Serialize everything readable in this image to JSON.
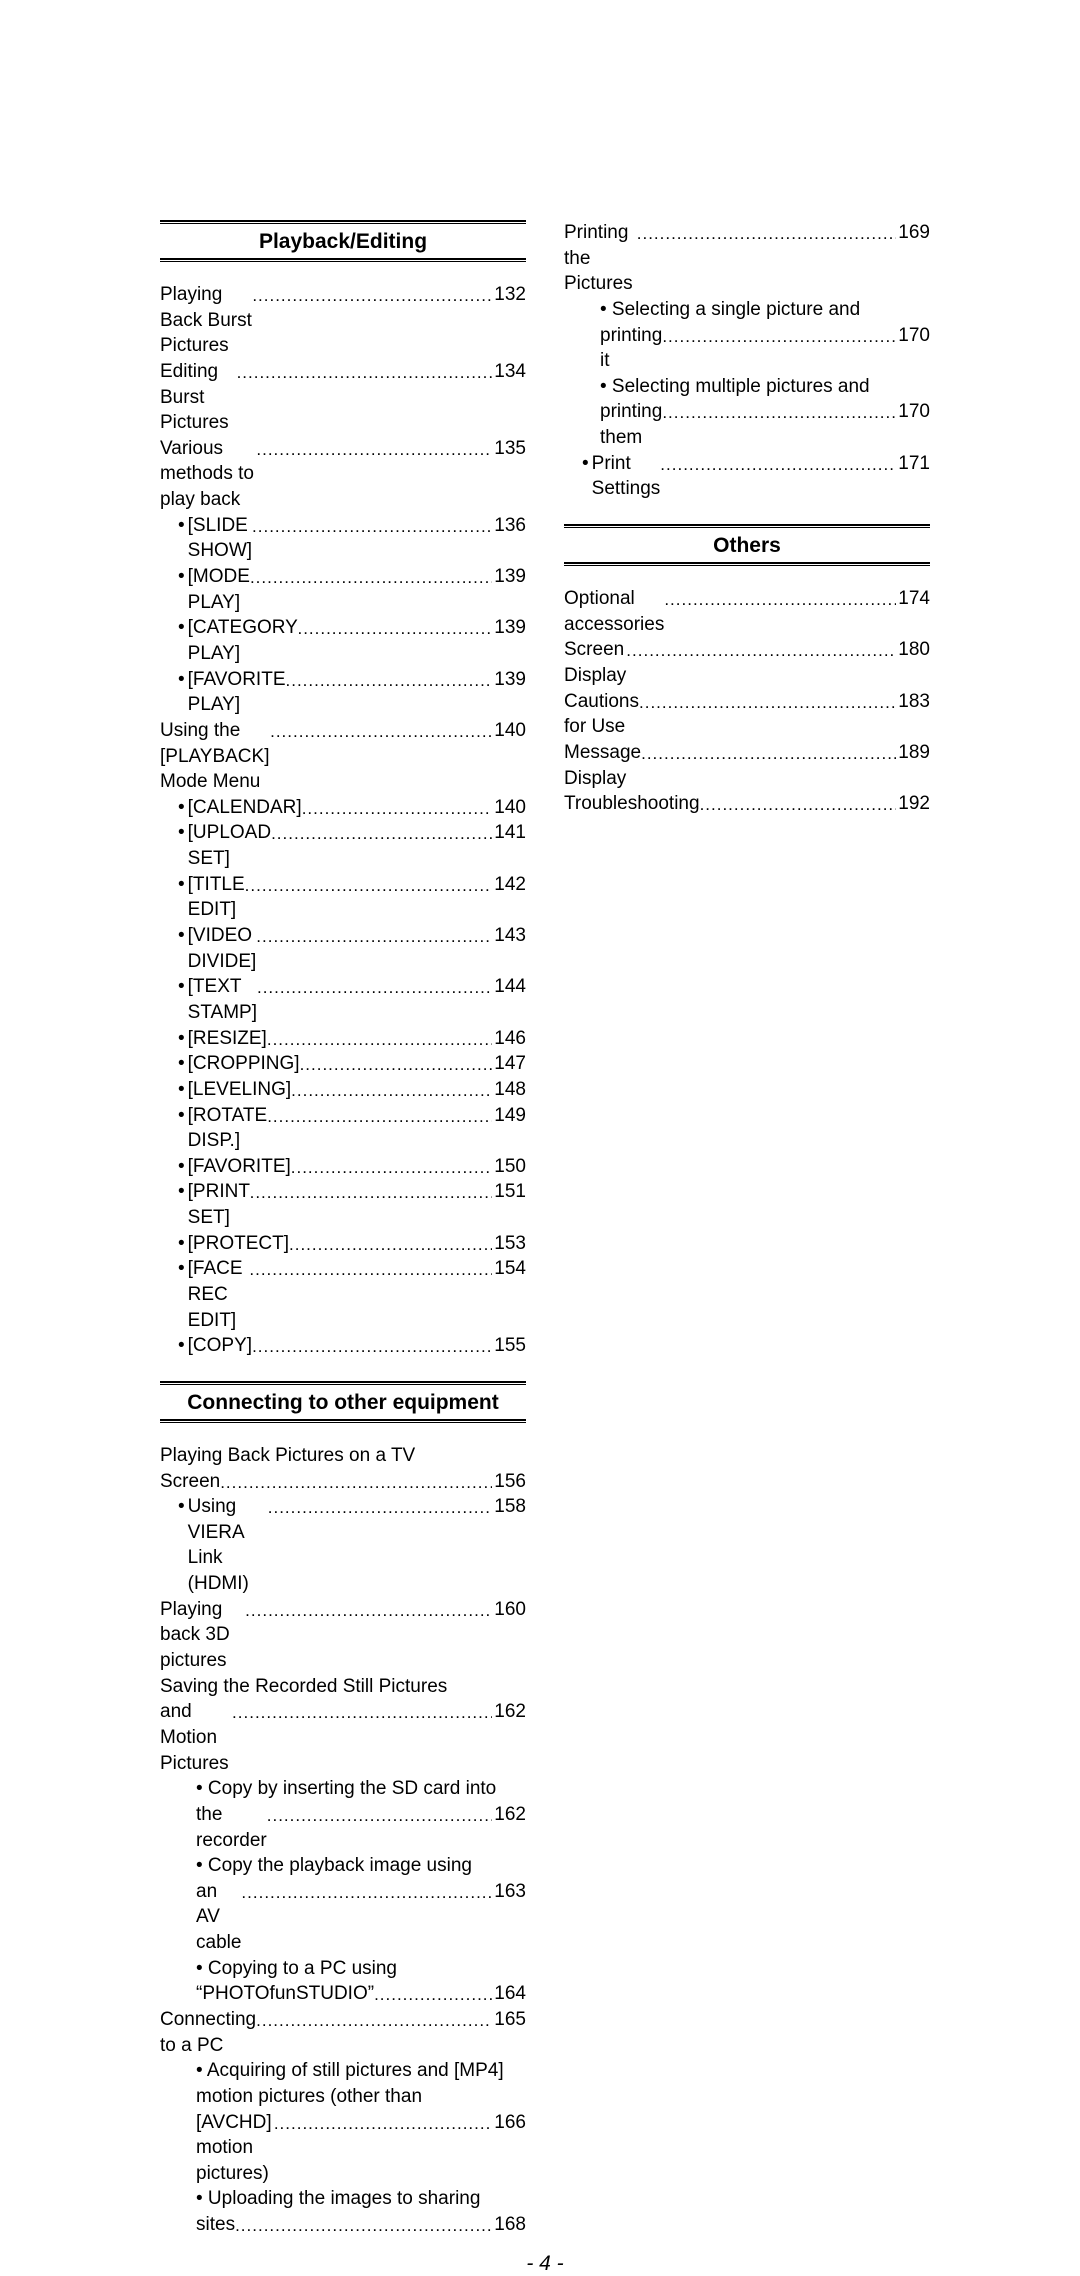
{
  "pageNumber": "- 4 -",
  "sections": [
    {
      "id": "playback",
      "title": "Playback/Editing",
      "column": "left",
      "entries": [
        {
          "type": "plain",
          "text": "Playing Back Burst Pictures",
          "page": "132"
        },
        {
          "type": "plain",
          "text": "Editing Burst Pictures",
          "page": "134"
        },
        {
          "type": "plain",
          "text": "Various methods to play back",
          "page": "135"
        },
        {
          "type": "sub",
          "text": "[SLIDE SHOW]",
          "page": "136"
        },
        {
          "type": "sub",
          "text": "[MODE PLAY]",
          "page": "139"
        },
        {
          "type": "sub",
          "text": "[CATEGORY PLAY]",
          "page": "139"
        },
        {
          "type": "sub",
          "text": "[FAVORITE PLAY]",
          "page": "139"
        },
        {
          "type": "plain",
          "text": "Using the [PLAYBACK] Mode Menu",
          "page": "140"
        },
        {
          "type": "sub",
          "text": "[CALENDAR]",
          "page": "140"
        },
        {
          "type": "sub",
          "text": "[UPLOAD SET]",
          "page": "141"
        },
        {
          "type": "sub",
          "text": "[TITLE EDIT]",
          "page": "142"
        },
        {
          "type": "sub",
          "text": "[VIDEO DIVIDE]",
          "page": "143"
        },
        {
          "type": "sub",
          "text": "[TEXT STAMP]",
          "page": "144"
        },
        {
          "type": "sub",
          "text": "[RESIZE]",
          "page": "146"
        },
        {
          "type": "sub",
          "text": "[CROPPING]",
          "page": "147"
        },
        {
          "type": "sub",
          "text": "[LEVELING]",
          "page": "148"
        },
        {
          "type": "sub",
          "text": "[ROTATE DISP.]",
          "page": "149"
        },
        {
          "type": "sub",
          "text": "[FAVORITE]",
          "page": "150"
        },
        {
          "type": "sub",
          "text": "[PRINT SET]",
          "page": "151"
        },
        {
          "type": "sub",
          "text": "[PROTECT]",
          "page": "153"
        },
        {
          "type": "sub",
          "text": "[FACE REC EDIT]",
          "page": "154"
        },
        {
          "type": "sub",
          "text": "[COPY]",
          "page": "155"
        }
      ]
    },
    {
      "id": "connecting",
      "title": "Connecting to other equipment",
      "column": "left",
      "entries": [
        {
          "type": "multi",
          "first": "Playing Back Pictures on a TV",
          "last": "Screen",
          "page": "156"
        },
        {
          "type": "sub",
          "text": "Using VIERA Link (HDMI)",
          "page": "158"
        },
        {
          "type": "plain",
          "text": "Playing back 3D pictures",
          "page": "160"
        },
        {
          "type": "multi",
          "first": "Saving the Recorded Still Pictures",
          "last": "and Motion Pictures",
          "page": "162"
        },
        {
          "type": "multi-sub",
          "first": "Copy by inserting the SD card into",
          "last": "the recorder",
          "page": "162"
        },
        {
          "type": "multi-sub",
          "first": "Copy the playback image using",
          "last": "an AV cable",
          "page": "163"
        },
        {
          "type": "multi-sub",
          "first": "Copying to a PC using",
          "last": "“PHOTOfunSTUDIO”",
          "page": "164"
        },
        {
          "type": "plain",
          "text": "Connecting to a PC",
          "page": "165"
        },
        {
          "type": "multi-sub3",
          "first": "Acquiring of still pictures and [MP4]",
          "mid": "motion pictures (other than",
          "last": "[AVCHD] motion pictures)",
          "page": "166"
        },
        {
          "type": "multi-sub",
          "first": "Uploading the images to sharing",
          "last": "sites",
          "page": "168"
        }
      ]
    },
    {
      "id": "printing",
      "title": null,
      "column": "right",
      "entries": [
        {
          "type": "plain",
          "text": "Printing the Pictures",
          "page": "169"
        },
        {
          "type": "multi-sub",
          "first": "Selecting a single picture and",
          "last": "printing it",
          "page": "170"
        },
        {
          "type": "multi-sub",
          "first": "Selecting multiple pictures and",
          "last": "printing them",
          "page": "170"
        },
        {
          "type": "sub",
          "text": "Print Settings",
          "page": "171"
        }
      ]
    },
    {
      "id": "others",
      "title": "Others",
      "column": "right",
      "entries": [
        {
          "type": "plain",
          "text": "Optional accessories",
          "page": "174"
        },
        {
          "type": "plain",
          "text": "Screen Display",
          "page": "180"
        },
        {
          "type": "plain",
          "text": "Cautions for Use",
          "page": "183"
        },
        {
          "type": "plain",
          "text": "Message Display",
          "page": "189"
        },
        {
          "type": "plain",
          "text": "Troubleshooting",
          "page": "192"
        }
      ]
    }
  ]
}
